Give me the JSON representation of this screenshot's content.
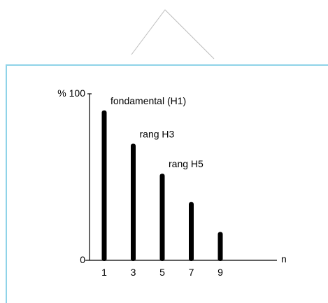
{
  "chart_data": {
    "type": "bar",
    "title": "",
    "xlabel": "n",
    "ylabel": "",
    "x": [
      1,
      3,
      5,
      7,
      9
    ],
    "values": [
      90,
      70,
      52,
      35,
      17
    ],
    "ylim": [
      0,
      100
    ],
    "y_tick_labels": [
      {
        "value": 0,
        "label": "0"
      },
      {
        "value": 100,
        "label": "% 100"
      }
    ],
    "x_tick_labels": [
      "1",
      "3",
      "5",
      "7",
      "9"
    ],
    "annotations": [
      {
        "x": 1,
        "text": "fondamental (H1)"
      },
      {
        "x": 3,
        "text": "rang H3"
      },
      {
        "x": 5,
        "text": "rang H5"
      }
    ],
    "grid": false,
    "colors": {
      "bars": "#000000",
      "frame": "#8fd3e8",
      "decor": "#bdbdbd"
    }
  }
}
